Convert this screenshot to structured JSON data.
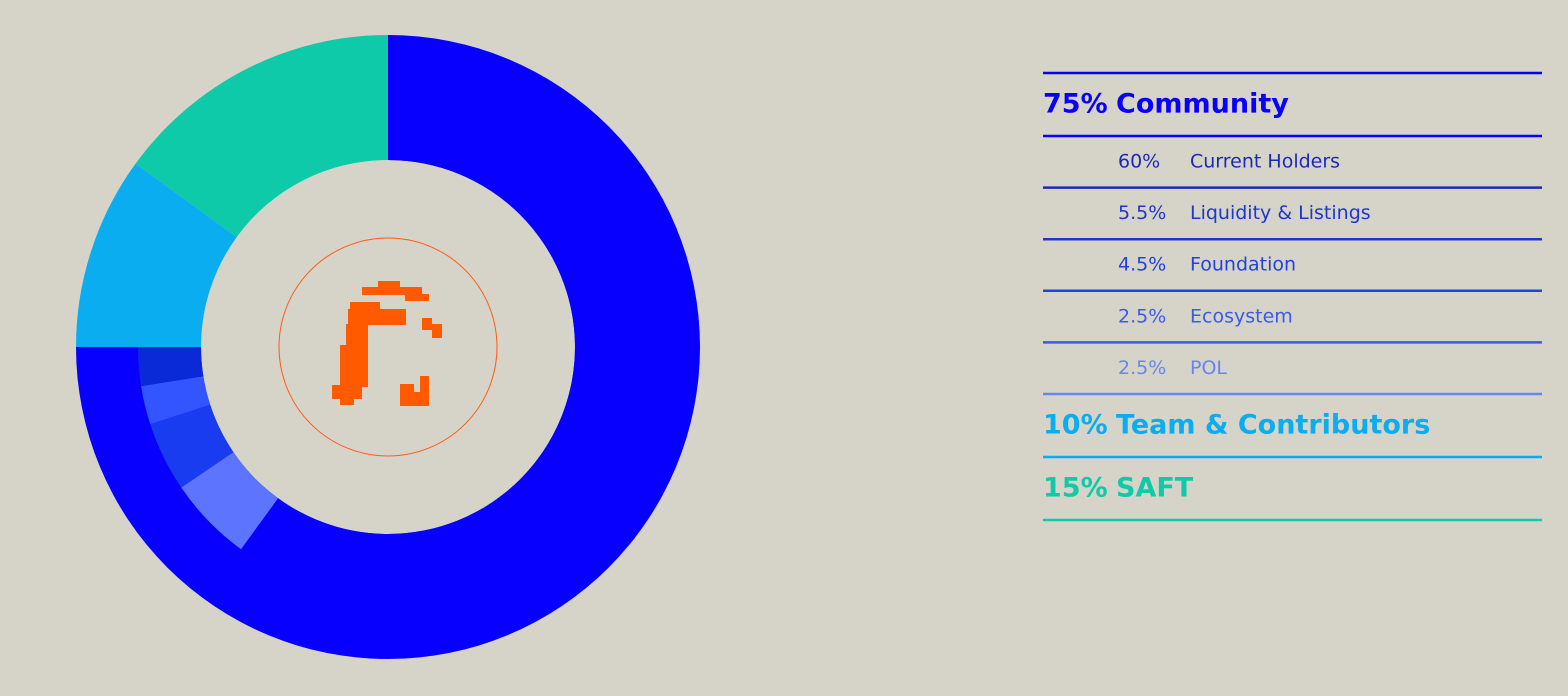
{
  "chart_data": {
    "type": "donut",
    "categories": [
      "Community",
      "Team & Contributors",
      "SAFT"
    ],
    "values": [
      75,
      10,
      15
    ],
    "value_labels": [
      "75%",
      "10%",
      "15%"
    ],
    "colors": [
      "#0800ff",
      "#0aaef0",
      "#0ecaa9"
    ],
    "sub": {
      "parent": "Community",
      "categories": [
        "Current Holders",
        "Liquidity & Listings",
        "Foundation",
        "Ecosystem",
        "POL"
      ],
      "values": [
        60,
        5.5,
        4.5,
        2.5,
        2.5
      ],
      "value_labels": [
        "60%",
        "5.5%",
        "4.5%",
        "2.5%",
        "2.5%"
      ],
      "colors": [
        "#0800ff",
        "#5c74ff",
        "#1a3cf0",
        "#3355ff",
        "#0a2ad8"
      ],
      "text_colors": [
        "#1a2ab8",
        "#1e36cc",
        "#2242dc",
        "#3b5ae8",
        "#6a84ee"
      ]
    }
  }
}
